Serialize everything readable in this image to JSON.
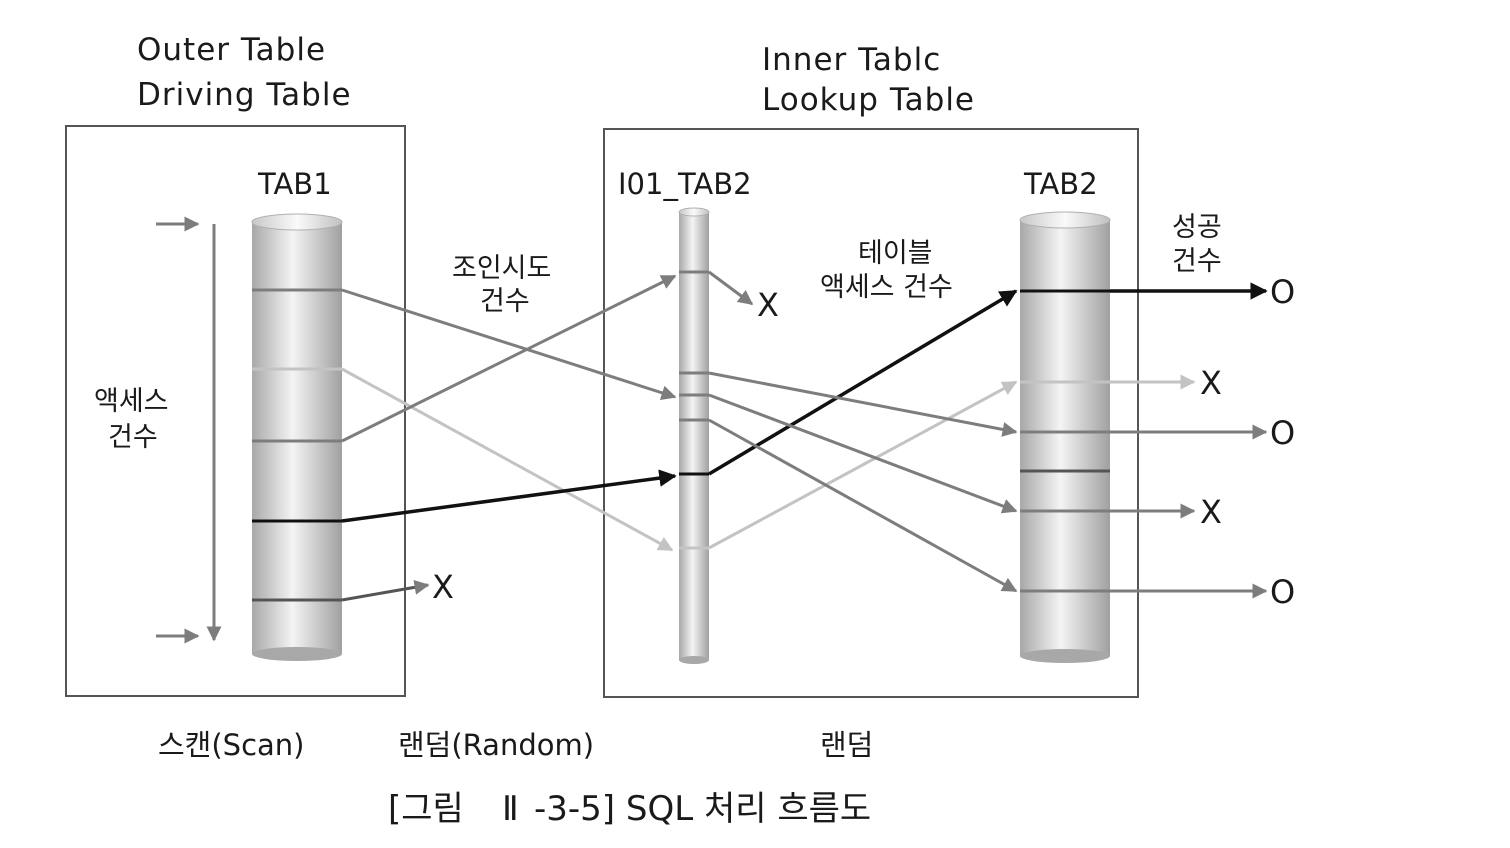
{
  "colors": {
    "dark": "#111111",
    "mid": "#7d7d7d",
    "light": "#c3c3c3",
    "box": "#555555",
    "cylinder_edge": "#9a9a9a"
  },
  "headers": {
    "outer_line1": "Outer Table",
    "outer_line2": "Driving Table",
    "inner_line1": "Inner Tablc",
    "inner_line2": "Lookup Table"
  },
  "tables": {
    "tab1": "TAB1",
    "index": "I01_TAB2",
    "tab2": "TAB2"
  },
  "annotations": {
    "access_count_line1": "액세스",
    "access_count_line2": "건수",
    "join_attempt_line1": "조인시도",
    "join_attempt_line2": "건수",
    "table_access_line1": "테이블",
    "table_access_line2": "액세스 건수",
    "success_line1": "성공",
    "success_line2": "건수"
  },
  "results": {
    "tab1_reject": "X",
    "index_reject": "X",
    "row1": "O",
    "row2": "X",
    "row3": "O",
    "row4": "X",
    "row5": "O"
  },
  "footer": {
    "scan": "스캔(Scan)",
    "random1": "랜덤(Random)",
    "random2": "랜덤"
  },
  "caption": {
    "prefix": "[그림",
    "numeral": "Ⅱ",
    "suffix": "-3-5] SQL 처리 흐름도"
  }
}
